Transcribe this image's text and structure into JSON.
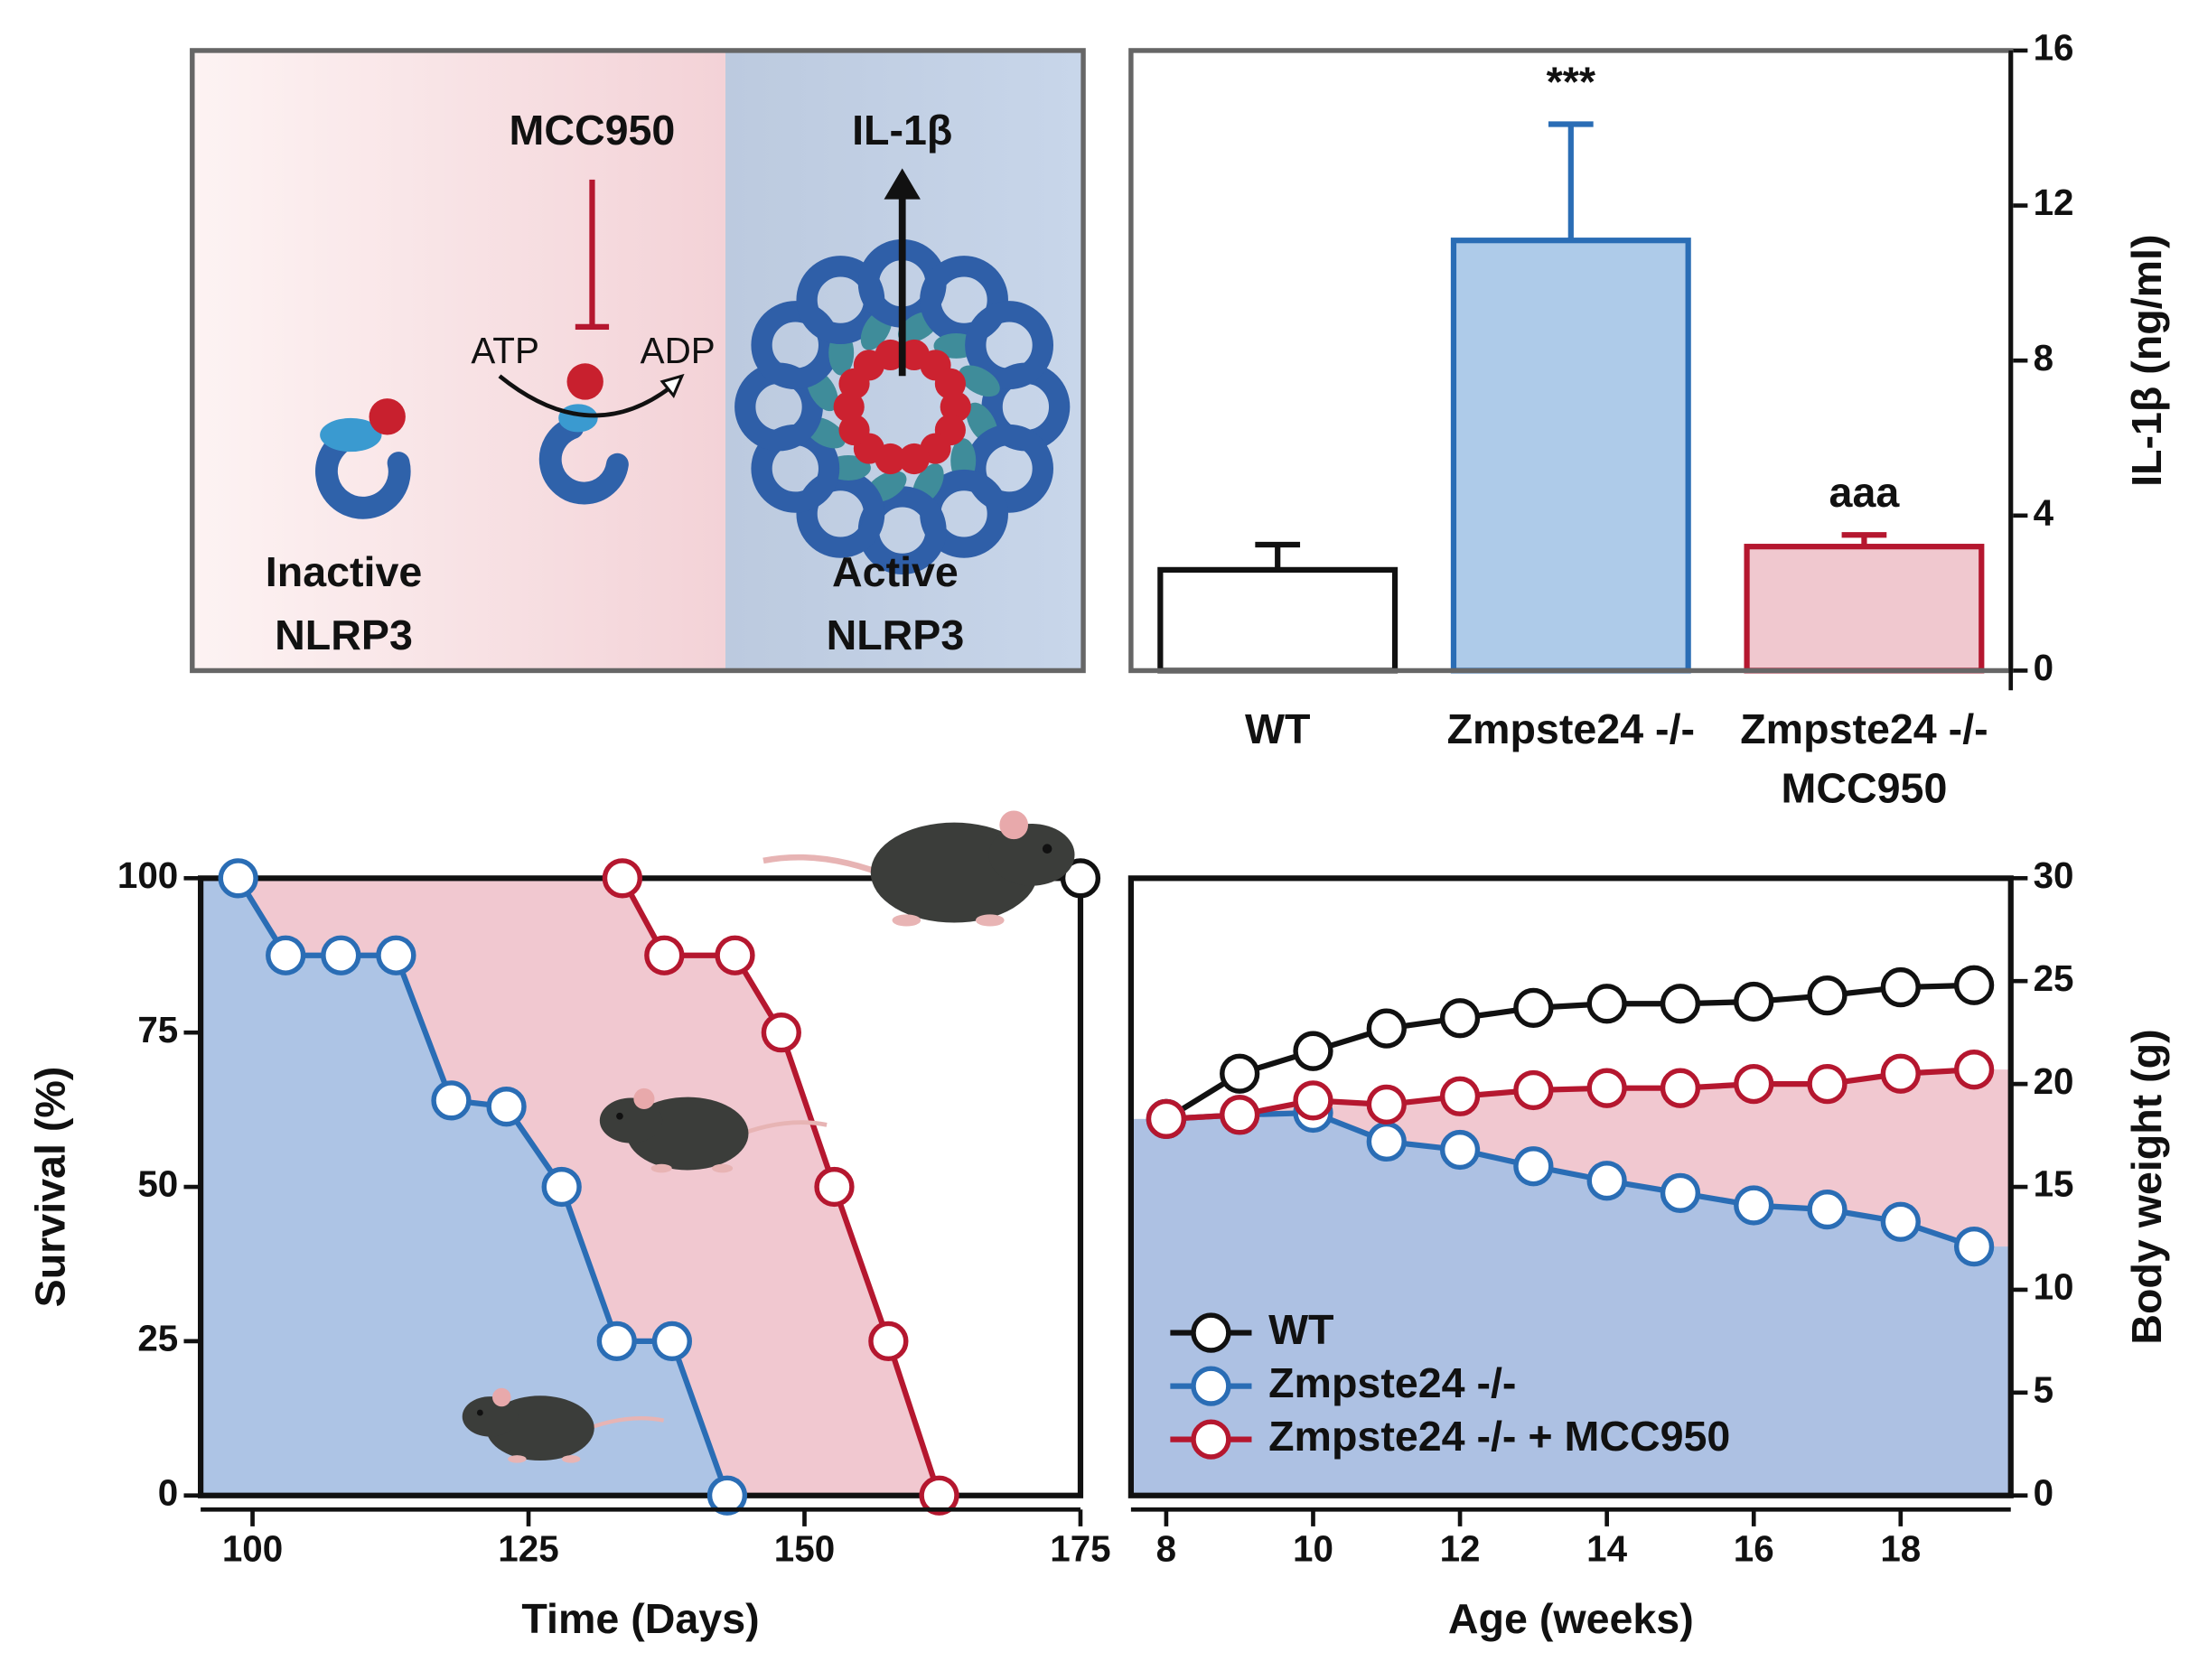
{
  "diagram": {
    "inhibitor": "MCC950",
    "product": "IL-1β",
    "substrate": "ATP",
    "byproduct": "ADP",
    "inactive": [
      "Inactive",
      "NLRP3"
    ],
    "active": [
      "Active",
      "NLRP3"
    ]
  },
  "chart_data": [
    {
      "type": "bar",
      "categories": [
        "WT",
        "Zmpste24 -/-",
        "Zmpste24 -/-\nMCC950"
      ],
      "values": [
        2.6,
        11.1,
        3.2
      ],
      "errors": [
        0.65,
        3.0,
        0.3
      ],
      "annotations": [
        null,
        "***",
        "aaa"
      ],
      "colors": [
        "#ffffff",
        "#aecbe9",
        "#f0c8cf"
      ],
      "edge_colors": [
        "#111111",
        "#2a6db5",
        "#b5172f"
      ],
      "ylabel": "IL-1β (ng/ml)",
      "yaxis": "right",
      "ylim": [
        0,
        16
      ],
      "yticks": [
        0,
        4,
        8,
        12,
        16
      ]
    },
    {
      "type": "line",
      "xlabel": "Time (Days)",
      "ylabel": "Survival (%)",
      "yaxis": "left",
      "xlim": [
        95.3,
        175
      ],
      "xticks": [
        100,
        125,
        150,
        175
      ],
      "ylim": [
        0,
        100
      ],
      "yticks": [
        0,
        25,
        50,
        75,
        100
      ],
      "series": [
        {
          "color": "#111111",
          "x": [
            175
          ],
          "values": [
            100
          ]
        },
        {
          "color": "#2a6db5",
          "area_color": "#a9c4e6",
          "x": [
            98.7,
            103,
            108,
            113,
            118,
            123,
            128,
            133,
            138,
            143
          ],
          "values": [
            100,
            87.5,
            87.5,
            87.5,
            64,
            63,
            50,
            25,
            25,
            0
          ]
        },
        {
          "color": "#b5172f",
          "area_color": "#f0c5cd",
          "x": [
            133.5,
            137.3,
            143.7,
            147.9,
            152.7,
            157.6,
            162.2
          ],
          "values": [
            100,
            87.5,
            87.5,
            75,
            50,
            25,
            0
          ]
        }
      ]
    },
    {
      "type": "line",
      "xlabel": "Age (weeks)",
      "ylabel": "Body weight (g)",
      "yaxis": "right",
      "legend": "lower left",
      "x": [
        8,
        9,
        10,
        11,
        12,
        13,
        14,
        15,
        16,
        17,
        18,
        19
      ],
      "xlim": [
        7.52,
        19.5
      ],
      "xticks": [
        8,
        10,
        12,
        14,
        16,
        18
      ],
      "ylim": [
        0,
        30
      ],
      "yticks": [
        0,
        5,
        10,
        15,
        20,
        25,
        30
      ],
      "series": [
        {
          "name": "WT",
          "color": "#111111",
          "values": [
            18.3,
            20.5,
            21.6,
            22.7,
            23.2,
            23.7,
            23.9,
            23.9,
            24.0,
            24.3,
            24.7,
            24.8
          ]
        },
        {
          "name": "Zmpste24 -/-",
          "color": "#2a6db5",
          "area_color": "#a9c1e4",
          "values": [
            18.3,
            18.5,
            18.6,
            17.2,
            16.8,
            16.0,
            15.3,
            14.7,
            14.1,
            13.9,
            13.3,
            12.1
          ]
        },
        {
          "name": "Zmpste24 -/- + MCC950",
          "color": "#b5172f",
          "area_color": "#f0c5cd",
          "values": [
            18.3,
            18.5,
            19.2,
            19.0,
            19.4,
            19.7,
            19.8,
            19.8,
            20.0,
            20.0,
            20.5,
            20.7
          ]
        }
      ]
    }
  ]
}
